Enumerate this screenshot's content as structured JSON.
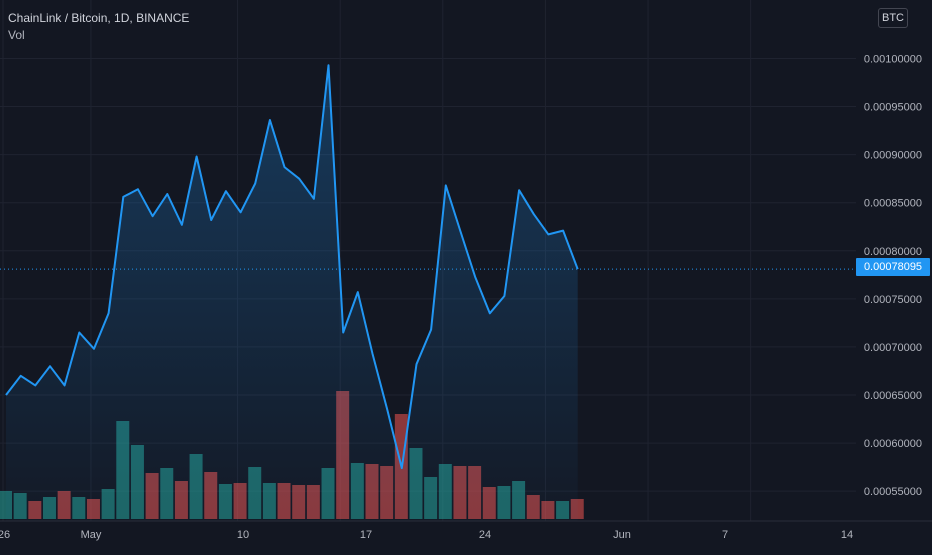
{
  "header": {
    "title": "ChainLink / Bitcoin, 1D, BINANCE",
    "volume_label": "Vol",
    "currency_badge": "BTC"
  },
  "last_price_tag": "0.00078095",
  "colors": {
    "background": "#131722",
    "grid": "#1f2330",
    "line": "#2196f3",
    "area_top": "rgba(33,150,243,0.28)",
    "area_bottom": "rgba(33,150,243,0.02)",
    "volume_up": "#26a69a",
    "volume_down": "#ef5350",
    "axis_text": "#b2b5be",
    "price_line": "#2196f3"
  },
  "chart_data": {
    "type": "area",
    "title": "ChainLink / Bitcoin, 1D, BINANCE",
    "xlabel": "",
    "ylabel": "",
    "grid": true,
    "x_ticks": [
      "26",
      "May",
      "10",
      "17",
      "24",
      "Jun",
      "7",
      "14"
    ],
    "y_ticks": [
      "0.00100000",
      "0.00095000",
      "0.00090000",
      "0.00085000",
      "0.00080000",
      "0.00075000",
      "0.00070000",
      "0.00065000",
      "0.00060000",
      "0.00055000"
    ],
    "ylim": [
      0.00052,
      0.00104
    ],
    "last_value": 0.00078095,
    "series": [
      {
        "type": "area",
        "values": [
          0.00065,
          0.00067,
          0.00066,
          0.00068,
          0.00066,
          0.000715,
          0.000698,
          0.000735,
          0.000856,
          0.000864,
          0.000836,
          0.000859,
          0.000827,
          0.000898,
          0.000832,
          0.000862,
          0.00084,
          0.00087,
          0.000936,
          0.000887,
          0.000875,
          0.000854,
          0.000993,
          0.000715,
          0.000757,
          0.000693,
          0.000635,
          0.000574,
          0.000682,
          0.000718,
          0.000868,
          0.00082,
          0.000773,
          0.000735,
          0.000753,
          0.000863,
          0.000838,
          0.000817,
          0.000821,
          0.00078095
        ]
      },
      {
        "type": "bar",
        "values": [
          28,
          26,
          18,
          22,
          28,
          22,
          20,
          30,
          98,
          74,
          46,
          51,
          38,
          65,
          47,
          35,
          36,
          52,
          36,
          36,
          34,
          34,
          51,
          128,
          56,
          55,
          53,
          105,
          71,
          42,
          55,
          53,
          53,
          32,
          33,
          38,
          24,
          18,
          18,
          20
        ],
        "direction": [
          "up",
          "up",
          "down",
          "up",
          "down",
          "up",
          "down",
          "up",
          "up",
          "up",
          "down",
          "up",
          "down",
          "up",
          "down",
          "up",
          "down",
          "up",
          "up",
          "down",
          "down",
          "down",
          "up",
          "down",
          "up",
          "down",
          "down",
          "down",
          "up",
          "up",
          "up",
          "down",
          "down",
          "down",
          "up",
          "up",
          "down",
          "down",
          "up",
          "down"
        ]
      }
    ]
  }
}
